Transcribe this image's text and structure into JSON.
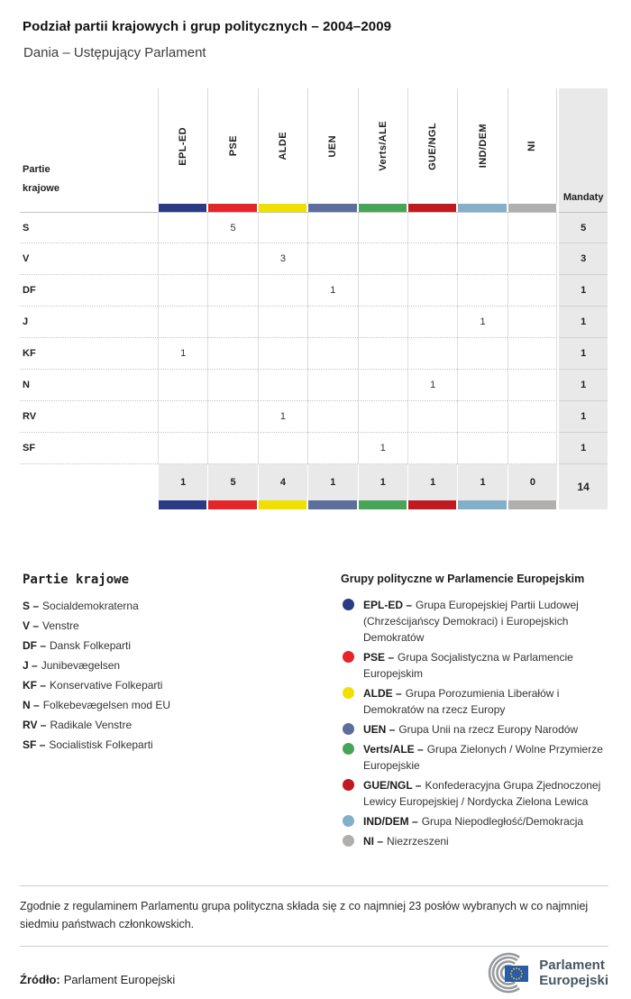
{
  "header": {
    "title": "Podział partii krajowych i grup politycznych – 2004–2009",
    "subtitle": "Dania – Ustępujący Parlament"
  },
  "table": {
    "corner_label_line1": "Partie",
    "corner_label_line2": "krajowe",
    "mandaty_label": "Mandaty",
    "groups": [
      {
        "code": "EPL-ED",
        "color": "#2b3a85"
      },
      {
        "code": "PSE",
        "color": "#e52528"
      },
      {
        "code": "ALDE",
        "color": "#f0e000"
      },
      {
        "code": "UEN",
        "color": "#5c6e9c"
      },
      {
        "code": "Verts/ALE",
        "color": "#47a557"
      },
      {
        "code": "GUE/NGL",
        "color": "#c0191f"
      },
      {
        "code": "IND/DEM",
        "color": "#84afc9"
      },
      {
        "code": "NI",
        "color": "#b1afad"
      }
    ],
    "rows": [
      {
        "party": "S",
        "values": [
          "",
          "5",
          "",
          "",
          "",
          "",
          "",
          ""
        ],
        "mandaty": "5"
      },
      {
        "party": "V",
        "values": [
          "",
          "",
          "3",
          "",
          "",
          "",
          "",
          ""
        ],
        "mandaty": "3"
      },
      {
        "party": "DF",
        "values": [
          "",
          "",
          "",
          "1",
          "",
          "",
          "",
          ""
        ],
        "mandaty": "1"
      },
      {
        "party": "J",
        "values": [
          "",
          "",
          "",
          "",
          "",
          "",
          "1",
          ""
        ],
        "mandaty": "1"
      },
      {
        "party": "KF",
        "values": [
          "1",
          "",
          "",
          "",
          "",
          "",
          "",
          ""
        ],
        "mandaty": "1"
      },
      {
        "party": "N",
        "values": [
          "",
          "",
          "",
          "",
          "",
          "1",
          "",
          ""
        ],
        "mandaty": "1"
      },
      {
        "party": "RV",
        "values": [
          "",
          "",
          "1",
          "",
          "",
          "",
          "",
          ""
        ],
        "mandaty": "1"
      },
      {
        "party": "SF",
        "values": [
          "",
          "",
          "",
          "",
          "1",
          "",
          "",
          ""
        ],
        "mandaty": "1"
      }
    ],
    "totals": {
      "values": [
        "1",
        "5",
        "4",
        "1",
        "1",
        "1",
        "1",
        "0"
      ],
      "mandaty": "14"
    }
  },
  "party_legend": {
    "heading": "Partie krajowe",
    "items": [
      {
        "bold": "S –",
        "rest": "Socialdemokraterna"
      },
      {
        "bold": "V –",
        "rest": "Venstre"
      },
      {
        "bold": "DF –",
        "rest": "Dansk Folkeparti"
      },
      {
        "bold": "J –",
        "rest": "Junibevægelsen"
      },
      {
        "bold": "KF –",
        "rest": "Konservative Folkeparti"
      },
      {
        "bold": "N –",
        "rest": "Folkebevægelsen mod EU"
      },
      {
        "bold": "RV –",
        "rest": "Radikale Venstre"
      },
      {
        "bold": "SF –",
        "rest": "Socialistisk Folkeparti"
      }
    ]
  },
  "group_legend": {
    "heading": "Grupy polityczne w Parlamencie Europejskim",
    "items": [
      {
        "bold": "EPL-ED –",
        "rest": "Grupa Europejskiej Partii Ludowej (Chrześcijańscy Demokraci) i Europejskich Demokratów",
        "color": "#2b3a85"
      },
      {
        "bold": "PSE –",
        "rest": "Grupa Socjalistyczna w Parlamencie Europejskim",
        "color": "#e52528"
      },
      {
        "bold": "ALDE –",
        "rest": "Grupa Porozumienia Liberałów i Demokratów na rzecz Europy",
        "color": "#f0e000"
      },
      {
        "bold": "UEN –",
        "rest": "Grupa Unii na rzecz Europy Narodów",
        "color": "#5c6e9c"
      },
      {
        "bold": "Verts/ALE –",
        "rest": "Grupa Zielonych / Wolne Przymierze Europejskie",
        "color": "#47a557"
      },
      {
        "bold": "GUE/NGL –",
        "rest": "Konfederacyjna Grupa Zjednoczonej Lewicy Europejskiej / Nordycka Zielona Lewica",
        "color": "#c0191f"
      },
      {
        "bold": "IND/DEM –",
        "rest": "Grupa Niepodległość/Demokracja",
        "color": "#84afc9"
      },
      {
        "bold": "NI –",
        "rest": "Niezrzeszeni",
        "color": "#b1afad"
      }
    ]
  },
  "note": "Zgodnie z regulaminem Parlamentu grupa polityczna składa się z co najmniej 23 posłów wybranych w co najmniej siedmiu państwach członkowskich.",
  "source": {
    "label": "Źródło:",
    "value": "Parlament Europejski"
  },
  "logo": {
    "line1": "Parlament",
    "line2": "Europejski"
  },
  "chart_data": {
    "type": "table",
    "title": "Podział partii krajowych i grup politycznych – 2004–2009",
    "subtitle": "Dania – Ustępujący Parlament",
    "columns": [
      "EPL-ED",
      "PSE",
      "ALDE",
      "UEN",
      "Verts/ALE",
      "GUE/NGL",
      "IND/DEM",
      "NI",
      "Mandaty"
    ],
    "rows": [
      {
        "party": "S",
        "seats": {
          "PSE": 5
        },
        "mandaty": 5
      },
      {
        "party": "V",
        "seats": {
          "ALDE": 3
        },
        "mandaty": 3
      },
      {
        "party": "DF",
        "seats": {
          "UEN": 1
        },
        "mandaty": 1
      },
      {
        "party": "J",
        "seats": {
          "IND/DEM": 1
        },
        "mandaty": 1
      },
      {
        "party": "KF",
        "seats": {
          "EPL-ED": 1
        },
        "mandaty": 1
      },
      {
        "party": "N",
        "seats": {
          "GUE/NGL": 1
        },
        "mandaty": 1
      },
      {
        "party": "RV",
        "seats": {
          "ALDE": 1
        },
        "mandaty": 1
      },
      {
        "party": "SF",
        "seats": {
          "Verts/ALE": 1
        },
        "mandaty": 1
      }
    ],
    "column_totals": [
      1,
      5,
      4,
      1,
      1,
      1,
      1,
      0
    ],
    "total_mandaty": 14
  }
}
